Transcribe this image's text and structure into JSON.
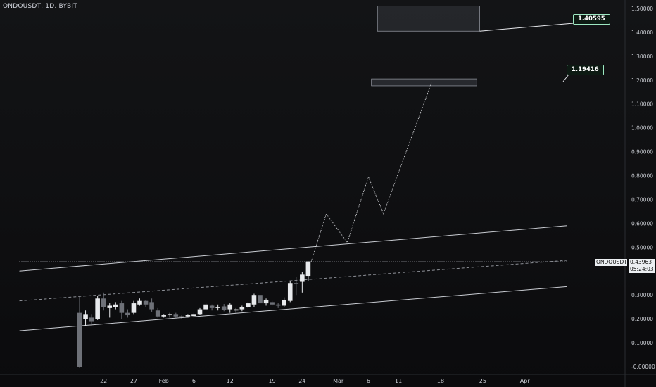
{
  "title": "ONDOUSDT, 1D, BYBIT",
  "last_price": {
    "symbol": "ONDOUSDT",
    "price": "0.43963",
    "countdown": "05:24:03"
  },
  "targets": [
    {
      "label": "1.40595",
      "value": 1.40595
    },
    {
      "label": "1.19416",
      "value": 1.19416
    }
  ],
  "chart_data": {
    "type": "candlestick",
    "y_range": [
      -0.02,
      1.52
    ],
    "x_range": [
      0,
      81
    ],
    "y_ticks": [
      {
        "value": 1.5,
        "label": "1.50000"
      },
      {
        "value": 1.4,
        "label": "1.40000"
      },
      {
        "value": 1.3,
        "label": "1.30000"
      },
      {
        "value": 1.2,
        "label": "1.20000"
      },
      {
        "value": 1.1,
        "label": "1.10000"
      },
      {
        "value": 1.0,
        "label": "1.00000"
      },
      {
        "value": 0.9,
        "label": "0.90000"
      },
      {
        "value": 0.8,
        "label": "0.80000"
      },
      {
        "value": 0.7,
        "label": "0.70000"
      },
      {
        "value": 0.6,
        "label": "0.60000"
      },
      {
        "value": 0.5,
        "label": "0.50000"
      },
      {
        "value": 0.3,
        "label": "0.30000"
      },
      {
        "value": 0.2,
        "label": "0.20000"
      },
      {
        "value": 0.1,
        "label": "0.10000"
      },
      {
        "value": 0.0,
        "label": "-0.00000"
      }
    ],
    "x_ticks": [
      {
        "x": 4,
        "label": "22"
      },
      {
        "x": 9,
        "label": "27"
      },
      {
        "x": 14,
        "label": "Feb"
      },
      {
        "x": 19,
        "label": "6"
      },
      {
        "x": 25,
        "label": "12"
      },
      {
        "x": 32,
        "label": "19"
      },
      {
        "x": 37,
        "label": "24"
      },
      {
        "x": 43,
        "label": "Mar"
      },
      {
        "x": 48,
        "label": "6"
      },
      {
        "x": 53,
        "label": "11"
      },
      {
        "x": 60,
        "label": "18"
      },
      {
        "x": 67,
        "label": "25"
      },
      {
        "x": 74,
        "label": "Apr"
      }
    ],
    "candles": [
      {
        "o": 0.225,
        "h": 0.295,
        "l": -0.005,
        "c": 0.0
      },
      {
        "o": 0.2,
        "h": 0.235,
        "l": 0.17,
        "c": 0.22
      },
      {
        "o": 0.205,
        "h": 0.22,
        "l": 0.175,
        "c": 0.19
      },
      {
        "o": 0.2,
        "h": 0.295,
        "l": 0.195,
        "c": 0.285
      },
      {
        "o": 0.285,
        "h": 0.31,
        "l": 0.235,
        "c": 0.25
      },
      {
        "o": 0.245,
        "h": 0.265,
        "l": 0.205,
        "c": 0.255
      },
      {
        "o": 0.25,
        "h": 0.27,
        "l": 0.24,
        "c": 0.26
      },
      {
        "o": 0.265,
        "h": 0.275,
        "l": 0.2,
        "c": 0.225
      },
      {
        "o": 0.225,
        "h": 0.24,
        "l": 0.205,
        "c": 0.215
      },
      {
        "o": 0.225,
        "h": 0.275,
        "l": 0.22,
        "c": 0.265
      },
      {
        "o": 0.26,
        "h": 0.285,
        "l": 0.255,
        "c": 0.275
      },
      {
        "o": 0.275,
        "h": 0.28,
        "l": 0.25,
        "c": 0.26
      },
      {
        "o": 0.27,
        "h": 0.285,
        "l": 0.23,
        "c": 0.24
      },
      {
        "o": 0.235,
        "h": 0.245,
        "l": 0.205,
        "c": 0.21
      },
      {
        "o": 0.21,
        "h": 0.22,
        "l": 0.205,
        "c": 0.215
      },
      {
        "o": 0.215,
        "h": 0.225,
        "l": 0.205,
        "c": 0.22
      },
      {
        "o": 0.22,
        "h": 0.225,
        "l": 0.205,
        "c": 0.21
      },
      {
        "o": 0.21,
        "h": 0.215,
        "l": 0.2,
        "c": 0.21
      },
      {
        "o": 0.21,
        "h": 0.22,
        "l": 0.205,
        "c": 0.218
      },
      {
        "o": 0.212,
        "h": 0.225,
        "l": 0.205,
        "c": 0.22
      },
      {
        "o": 0.22,
        "h": 0.245,
        "l": 0.215,
        "c": 0.24
      },
      {
        "o": 0.24,
        "h": 0.265,
        "l": 0.235,
        "c": 0.26
      },
      {
        "o": 0.255,
        "h": 0.26,
        "l": 0.235,
        "c": 0.245
      },
      {
        "o": 0.245,
        "h": 0.26,
        "l": 0.235,
        "c": 0.25
      },
      {
        "o": 0.252,
        "h": 0.262,
        "l": 0.232,
        "c": 0.238
      },
      {
        "o": 0.24,
        "h": 0.265,
        "l": 0.225,
        "c": 0.26
      },
      {
        "o": 0.235,
        "h": 0.245,
        "l": 0.225,
        "c": 0.24
      },
      {
        "o": 0.24,
        "h": 0.255,
        "l": 0.232,
        "c": 0.25
      },
      {
        "o": 0.25,
        "h": 0.27,
        "l": 0.245,
        "c": 0.265
      },
      {
        "o": 0.26,
        "h": 0.305,
        "l": 0.25,
        "c": 0.3
      },
      {
        "o": 0.3,
        "h": 0.31,
        "l": 0.255,
        "c": 0.265
      },
      {
        "o": 0.265,
        "h": 0.285,
        "l": 0.255,
        "c": 0.28
      },
      {
        "o": 0.27,
        "h": 0.275,
        "l": 0.255,
        "c": 0.26
      },
      {
        "o": 0.26,
        "h": 0.265,
        "l": 0.245,
        "c": 0.255
      },
      {
        "o": 0.255,
        "h": 0.29,
        "l": 0.25,
        "c": 0.28
      },
      {
        "o": 0.275,
        "h": 0.36,
        "l": 0.27,
        "c": 0.35
      },
      {
        "o": 0.35,
        "h": 0.375,
        "l": 0.3,
        "c": 0.345
      },
      {
        "o": 0.355,
        "h": 0.395,
        "l": 0.31,
        "c": 0.385
      },
      {
        "o": 0.38,
        "h": 0.44,
        "l": 0.36,
        "c": 0.44
      }
    ],
    "trendlines": [
      {
        "style": "solid",
        "x1": -10,
        "y1": 0.15,
        "x2": 81,
        "y2": 0.335
      },
      {
        "style": "solid",
        "x1": -10,
        "y1": 0.4,
        "x2": 81,
        "y2": 0.59
      },
      {
        "style": "dashed",
        "x1": -10,
        "y1": 0.275,
        "x2": 81,
        "y2": 0.445
      },
      {
        "style": "dotted",
        "x1": -10,
        "y1": 0.44,
        "x2": 81,
        "y2": 0.44
      }
    ],
    "projection": [
      {
        "x": 38.5,
        "y": 0.44
      },
      {
        "x": 41,
        "y": 0.64
      },
      {
        "x": 44.5,
        "y": 0.52
      },
      {
        "x": 48,
        "y": 0.795
      },
      {
        "x": 50.5,
        "y": 0.64
      },
      {
        "x": 58.5,
        "y": 1.19
      }
    ],
    "zones": [
      {
        "x1": 49.5,
        "x2": 66.5,
        "y1": 1.405,
        "y2": 1.51
      },
      {
        "x1": 48.5,
        "x2": 66.0,
        "y1": 1.176,
        "y2": 1.205
      }
    ]
  }
}
